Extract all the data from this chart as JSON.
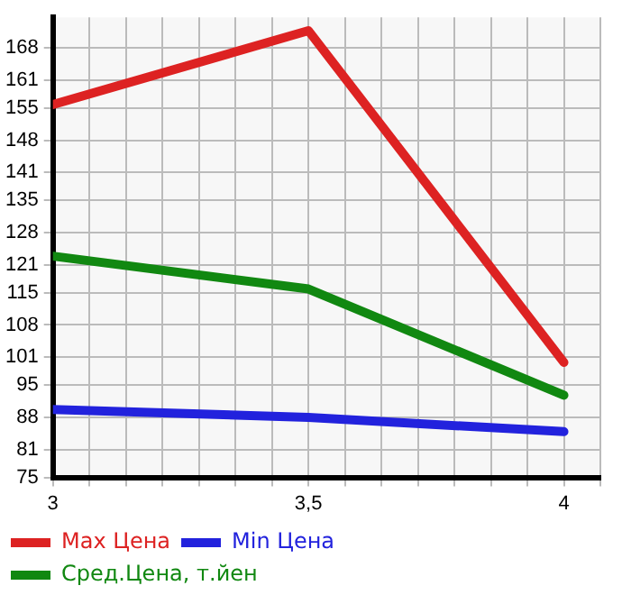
{
  "chart_data": {
    "type": "line",
    "x": [
      3,
      3.5,
      4
    ],
    "xlim": [
      3,
      4.0714
    ],
    "xticks": [
      {
        "value": 3,
        "label": "3"
      },
      {
        "value": 3.0714,
        "label": null
      },
      {
        "value": 3.1429,
        "label": null
      },
      {
        "value": 3.2143,
        "label": null
      },
      {
        "value": 3.2857,
        "label": null
      },
      {
        "value": 3.3571,
        "label": null
      },
      {
        "value": 3.4286,
        "label": null
      },
      {
        "value": 3.5,
        "label": "3,5"
      },
      {
        "value": 3.5714,
        "label": null
      },
      {
        "value": 3.6429,
        "label": null
      },
      {
        "value": 3.7143,
        "label": null
      },
      {
        "value": 3.7857,
        "label": null
      },
      {
        "value": 3.8571,
        "label": null
      },
      {
        "value": 3.9286,
        "label": null
      },
      {
        "value": 4,
        "label": "4"
      },
      {
        "value": 4.0714,
        "label": null
      }
    ],
    "ylim": [
      75,
      174.6
    ],
    "yticks": [
      75,
      81,
      88,
      95,
      101,
      108,
      115,
      121,
      128,
      135,
      141,
      148,
      155,
      161,
      168
    ],
    "grid": true,
    "legend": "bottom",
    "marker": "none",
    "line_style": "solid",
    "series": [
      {
        "name": "Max Цена",
        "color": "#dd2222",
        "values": [
          155.7,
          171.7,
          99.9
        ]
      },
      {
        "name": "Min Цена",
        "color": "#2222dd",
        "values": [
          89.7,
          88,
          84.9
        ]
      },
      {
        "name": "Сред.Цена, т.йен",
        "color": "#118811",
        "values": [
          122.9,
          115.8,
          92.8
        ]
      }
    ]
  }
}
